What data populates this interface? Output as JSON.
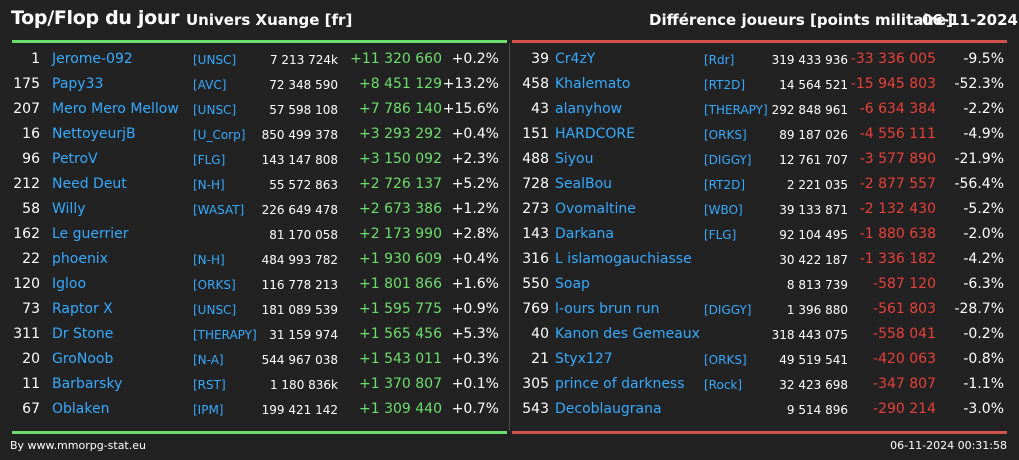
{
  "header": {
    "title": "Top/Flop du jour",
    "server": "Univers Xuange [fr]",
    "metric": "Différence joueurs [points militaire]",
    "date": "06-11-2024"
  },
  "colors": {
    "positive": "#6dde6d",
    "negative": "#e8403a",
    "link": "#33aaff",
    "background": "#222222"
  },
  "top": [
    {
      "rank": "1",
      "name": "Jerome-092",
      "alliance": "[UNSC]",
      "points": "7 213 724k",
      "diff": "+11 320 660",
      "pct": "+0.2%"
    },
    {
      "rank": "175",
      "name": "Papy33",
      "alliance": "[AVC]",
      "points": "72 348 590",
      "diff": "+8 451 129",
      "pct": "+13.2%"
    },
    {
      "rank": "207",
      "name": "Mero Mero Mellow",
      "alliance": "[UNSC]",
      "points": "57 598 108",
      "diff": "+7 786 140",
      "pct": "+15.6%"
    },
    {
      "rank": "16",
      "name": "NettoyeurjB",
      "alliance": "[U_Corp]",
      "points": "850 499 378",
      "diff": "+3 293 292",
      "pct": "+0.4%"
    },
    {
      "rank": "96",
      "name": "PetroV",
      "alliance": "[FLG]",
      "points": "143 147 808",
      "diff": "+3 150 092",
      "pct": "+2.3%"
    },
    {
      "rank": "212",
      "name": "Need Deut",
      "alliance": "[N-H]",
      "points": "55 572 863",
      "diff": "+2 726 137",
      "pct": "+5.2%"
    },
    {
      "rank": "58",
      "name": "Willy",
      "alliance": "[WASAT]",
      "points": "226 649 478",
      "diff": "+2 673 386",
      "pct": "+1.2%"
    },
    {
      "rank": "162",
      "name": "Le guerrier",
      "alliance": "",
      "points": "81 170 058",
      "diff": "+2 173 990",
      "pct": "+2.8%"
    },
    {
      "rank": "22",
      "name": "phoenix",
      "alliance": "[N-H]",
      "points": "484 993 782",
      "diff": "+1 930 609",
      "pct": "+0.4%"
    },
    {
      "rank": "120",
      "name": "Igloo",
      "alliance": "[ORKS]",
      "points": "116 778 213",
      "diff": "+1 801 866",
      "pct": "+1.6%"
    },
    {
      "rank": "73",
      "name": "Raptor X",
      "alliance": "[UNSC]",
      "points": "181 089 539",
      "diff": "+1 595 775",
      "pct": "+0.9%"
    },
    {
      "rank": "311",
      "name": "Dr Stone",
      "alliance": "[THERAPY]",
      "points": "31 159 974",
      "diff": "+1 565 456",
      "pct": "+5.3%"
    },
    {
      "rank": "20",
      "name": "GroNoob",
      "alliance": "[N-A]",
      "points": "544 967 038",
      "diff": "+1 543 011",
      "pct": "+0.3%"
    },
    {
      "rank": "11",
      "name": "Barbarsky",
      "alliance": "[RST]",
      "points": "1 180 836k",
      "diff": "+1 370 807",
      "pct": "+0.1%"
    },
    {
      "rank": "67",
      "name": "Oblaken",
      "alliance": "[IPM]",
      "points": "199 421 142",
      "diff": "+1 309 440",
      "pct": "+0.7%"
    }
  ],
  "flop": [
    {
      "rank": "39",
      "name": "Cr4zY",
      "alliance": "[Rdr]",
      "points": "319 433 936",
      "diff": "-33 336 005",
      "pct": "-9.5%"
    },
    {
      "rank": "458",
      "name": "Khalemato",
      "alliance": "[RT2D]",
      "points": "14 564 521",
      "diff": "-15 945 803",
      "pct": "-52.3%"
    },
    {
      "rank": "43",
      "name": "alanyhow",
      "alliance": "[THERAPY]",
      "points": "292 848 961",
      "diff": "-6 634 384",
      "pct": "-2.2%"
    },
    {
      "rank": "151",
      "name": "HARDCORE",
      "alliance": "[ORKS]",
      "points": "89 187 026",
      "diff": "-4 556 111",
      "pct": "-4.9%"
    },
    {
      "rank": "488",
      "name": "Siyou",
      "alliance": "[DIGGY]",
      "points": "12 761 707",
      "diff": "-3 577 890",
      "pct": "-21.9%"
    },
    {
      "rank": "728",
      "name": "SealBou",
      "alliance": "[RT2D]",
      "points": "2 221 035",
      "diff": "-2 877 557",
      "pct": "-56.4%"
    },
    {
      "rank": "273",
      "name": "Ovomaltine",
      "alliance": "[WBO]",
      "points": "39 133 871",
      "diff": "-2 132 430",
      "pct": "-5.2%"
    },
    {
      "rank": "143",
      "name": "Darkana",
      "alliance": "[FLG]",
      "points": "92 104 495",
      "diff": "-1 880 638",
      "pct": "-2.0%"
    },
    {
      "rank": "316",
      "name": "L islamogauchiasse",
      "alliance": "",
      "points": "30 422 187",
      "diff": "-1 336 182",
      "pct": "-4.2%"
    },
    {
      "rank": "550",
      "name": "Soap",
      "alliance": "",
      "points": "8 813 739",
      "diff": "-587 120",
      "pct": "-6.3%"
    },
    {
      "rank": "769",
      "name": "l-ours brun run",
      "alliance": "[DIGGY]",
      "points": "1 396 880",
      "diff": "-561 803",
      "pct": "-28.7%"
    },
    {
      "rank": "40",
      "name": "Kanon des Gemeaux",
      "alliance": "",
      "points": "318 443 075",
      "diff": "-558 041",
      "pct": "-0.2%"
    },
    {
      "rank": "21",
      "name": "Styx127",
      "alliance": "[ORKS]",
      "points": "49 519 541",
      "diff": "-420 063",
      "pct": "-0.8%"
    },
    {
      "rank": "305",
      "name": "prince of darkness",
      "alliance": "[Rock]",
      "points": "32 423 698",
      "diff": "-347 807",
      "pct": "-1.1%"
    },
    {
      "rank": "543",
      "name": "Decoblaugrana",
      "alliance": "",
      "points": "9 514 896",
      "diff": "-290 214",
      "pct": "-3.0%"
    }
  ],
  "footer": {
    "source": "By www.mmorpg-stat.eu",
    "timestamp": "06-11-2024 00:31:58"
  }
}
